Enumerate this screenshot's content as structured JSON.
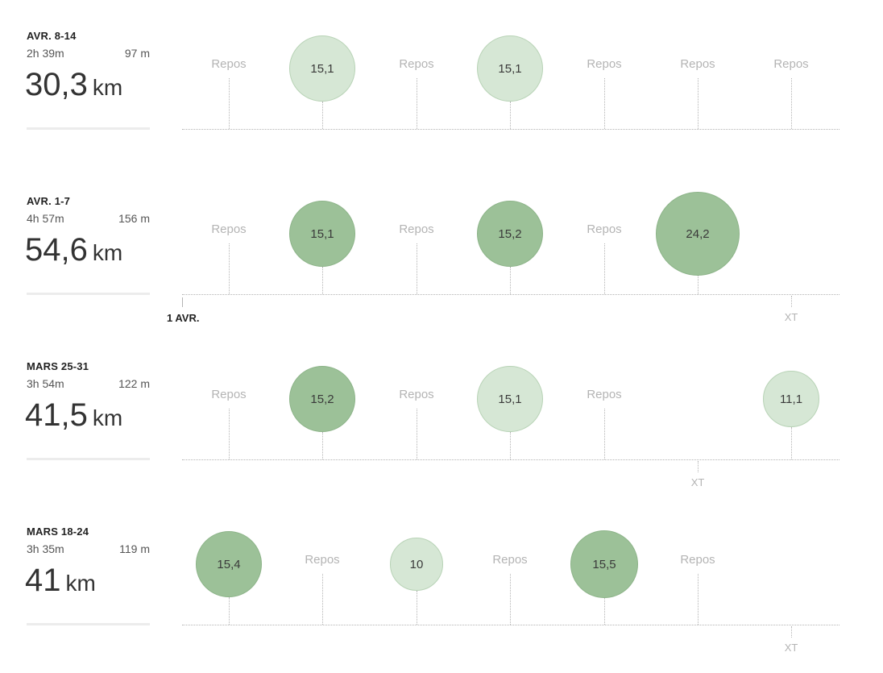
{
  "weeks": [
    {
      "title": "AVR. 8-14",
      "time": "2h 39m",
      "elevation": "97 m",
      "distance": "30,3",
      "unit": "km",
      "days": [
        {
          "type": "rest",
          "label": "Repos"
        },
        {
          "type": "run",
          "value": "15,1",
          "km": 15.1,
          "shade": "light"
        },
        {
          "type": "rest",
          "label": "Repos"
        },
        {
          "type": "run",
          "value": "15,1",
          "km": 15.1,
          "shade": "light"
        },
        {
          "type": "rest",
          "label": "Repos"
        },
        {
          "type": "rest",
          "label": "Repos"
        },
        {
          "type": "rest",
          "label": "Repos"
        }
      ]
    },
    {
      "title": "AVR. 1-7",
      "time": "4h 57m",
      "elevation": "156 m",
      "distance": "54,6",
      "unit": "km",
      "month_marker": "1 AVR.",
      "days": [
        {
          "type": "rest",
          "label": "Repos"
        },
        {
          "type": "run",
          "value": "15,1",
          "km": 15.1,
          "shade": "dark"
        },
        {
          "type": "rest",
          "label": "Repos"
        },
        {
          "type": "run",
          "value": "15,2",
          "km": 15.2,
          "shade": "dark"
        },
        {
          "type": "rest",
          "label": "Repos"
        },
        {
          "type": "run",
          "value": "24,2",
          "km": 24.2,
          "shade": "dark"
        },
        {
          "type": "xt",
          "label": "XT"
        }
      ]
    },
    {
      "title": "MARS 25-31",
      "time": "3h 54m",
      "elevation": "122 m",
      "distance": "41,5",
      "unit": "km",
      "days": [
        {
          "type": "rest",
          "label": "Repos"
        },
        {
          "type": "run",
          "value": "15,2",
          "km": 15.2,
          "shade": "dark"
        },
        {
          "type": "rest",
          "label": "Repos"
        },
        {
          "type": "run",
          "value": "15,1",
          "km": 15.1,
          "shade": "light"
        },
        {
          "type": "rest",
          "label": "Repos"
        },
        {
          "type": "xt",
          "label": "XT"
        },
        {
          "type": "run",
          "value": "11,1",
          "km": 11.1,
          "shade": "light"
        }
      ]
    },
    {
      "title": "MARS 18-24",
      "time": "3h 35m",
      "elevation": "119 m",
      "distance": "41",
      "unit": "km",
      "days": [
        {
          "type": "run",
          "value": "15,4",
          "km": 15.4,
          "shade": "dark"
        },
        {
          "type": "rest",
          "label": "Repos"
        },
        {
          "type": "run",
          "value": "10",
          "km": 10,
          "shade": "light"
        },
        {
          "type": "rest",
          "label": "Repos"
        },
        {
          "type": "run",
          "value": "15,5",
          "km": 15.5,
          "shade": "dark"
        },
        {
          "type": "rest",
          "label": "Repos"
        },
        {
          "type": "xt",
          "label": "XT"
        }
      ]
    }
  ]
}
